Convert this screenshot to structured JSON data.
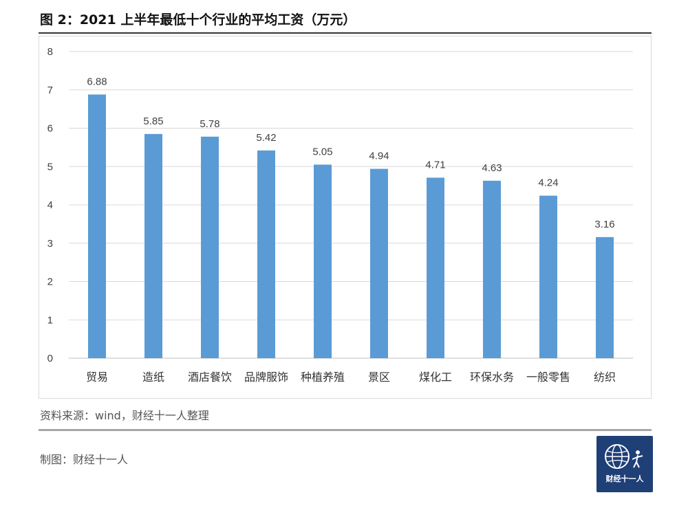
{
  "header": {
    "title": "图 2：2021 上半年最低十个行业的平均工资（万元）"
  },
  "footer": {
    "source": "资料来源：wind，财经十一人整理",
    "maker": "制图：财经十一人"
  },
  "logo": {
    "text": "财经十一人",
    "icon": "globe-figure-icon",
    "bg_color": "#1f3f77"
  },
  "chart_data": {
    "type": "bar",
    "categories": [
      "贸易",
      "造纸",
      "酒店餐饮",
      "品牌服饰",
      "种植养殖",
      "景区",
      "煤化工",
      "环保水务",
      "一般零售",
      "纺织"
    ],
    "values": [
      6.88,
      5.85,
      5.78,
      5.42,
      5.05,
      4.94,
      4.71,
      4.63,
      4.24,
      3.16
    ],
    "value_labels": [
      "6.88",
      "5.85",
      "5.78",
      "5.42",
      "5.05",
      "4.94",
      "4.71",
      "4.63",
      "4.24",
      "3.16"
    ],
    "yticks": [
      0,
      1,
      2,
      3,
      4,
      5,
      6,
      7,
      8
    ],
    "ylim": [
      0,
      8
    ],
    "grid": true,
    "bar_color": "#5b9bd5",
    "grid_color": "#d9d9d9",
    "legend": "none"
  }
}
